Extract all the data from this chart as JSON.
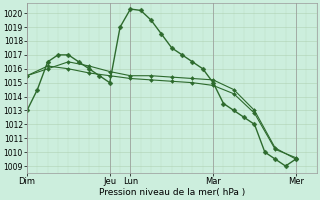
{
  "xlabel": "Pression niveau de la mer( hPa )",
  "bg_color": "#cceedd",
  "grid_color": "#aaccaa",
  "line_color": "#2d6a2d",
  "ylim": [
    1008.5,
    1020.7
  ],
  "xlim": [
    0,
    168
  ],
  "day_labels": [
    "Dim",
    "",
    "Jeu",
    "Lun",
    "",
    "Mar",
    "",
    "Mer"
  ],
  "day_positions": [
    0,
    24,
    48,
    60,
    84,
    108,
    132,
    156
  ],
  "day_line_positions": [
    0,
    48,
    60,
    108,
    156
  ],
  "series1_x": [
    0,
    6,
    12,
    18,
    24,
    30,
    36,
    42,
    48,
    54,
    60,
    66,
    72,
    78,
    84,
    90,
    96,
    102,
    108,
    114,
    120,
    126,
    132,
    138,
    144,
    150,
    156
  ],
  "series1_y": [
    1013.0,
    1014.5,
    1016.5,
    1017.0,
    1017.0,
    1016.5,
    1016.0,
    1015.5,
    1015.0,
    1019.0,
    1020.3,
    1020.2,
    1019.5,
    1018.5,
    1017.5,
    1017.0,
    1016.5,
    1016.0,
    1015.0,
    1013.5,
    1013.0,
    1012.5,
    1012.0,
    1010.0,
    1009.5,
    1009.0,
    1009.5
  ],
  "series2_x": [
    0,
    12,
    24,
    36,
    48,
    60,
    72,
    84,
    96,
    108,
    120,
    132,
    144,
    156
  ],
  "series2_y": [
    1015.5,
    1016.0,
    1016.5,
    1016.2,
    1015.8,
    1015.5,
    1015.5,
    1015.4,
    1015.3,
    1015.2,
    1014.5,
    1013.0,
    1010.3,
    1009.5
  ],
  "series3_x": [
    0,
    12,
    24,
    36,
    48,
    60,
    72,
    84,
    96,
    108,
    120,
    132,
    144,
    156
  ],
  "series3_y": [
    1015.5,
    1016.2,
    1016.0,
    1015.7,
    1015.5,
    1015.3,
    1015.2,
    1015.1,
    1015.0,
    1014.8,
    1014.2,
    1012.8,
    1010.2,
    1009.6
  ],
  "y_ticks": [
    1009,
    1010,
    1011,
    1012,
    1013,
    1014,
    1015,
    1016,
    1017,
    1018,
    1019,
    1020
  ],
  "tick_fontsize": 5.5,
  "xlabel_fontsize": 6.5,
  "xtick_fontsize": 6.0,
  "linewidth1": 1.0,
  "linewidth2": 0.8,
  "markersize1": 2.5,
  "markersize2": 2.0
}
